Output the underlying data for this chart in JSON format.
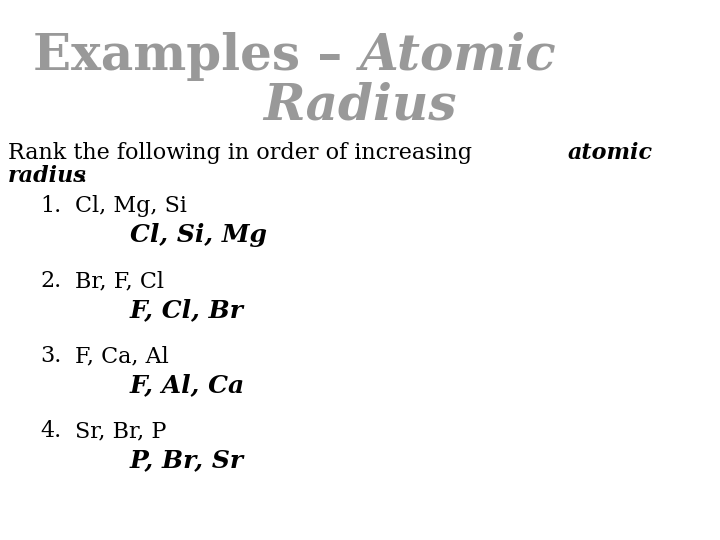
{
  "bg_color": "#ffffff",
  "title_color": "#999999",
  "body_color": "#000000",
  "title_fontsize": 36,
  "body_fontsize": 16,
  "answer_fontsize": 18,
  "items": [
    {
      "num": "1.",
      "question": "Cl, Mg, Si",
      "answer": "Cl, Si, Mg"
    },
    {
      "num": "2.",
      "question": "Br, F, Cl",
      "answer": "F, Cl, Br"
    },
    {
      "num": "3.",
      "question": "F, Ca, Al",
      "answer": "F, Al, Ca"
    },
    {
      "num": "4.",
      "question": "Sr, Br, P",
      "answer": "P, Br, Sr"
    }
  ]
}
